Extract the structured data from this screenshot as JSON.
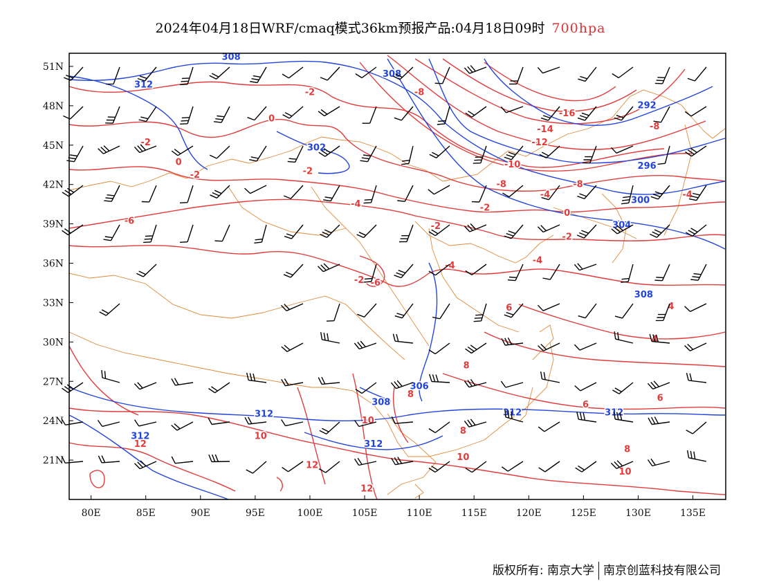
{
  "title": {
    "main": "2024年04月18日WRF/cmaq模式36km预报产品:04月18日09时",
    "level": "700hpa"
  },
  "colors": {
    "temperature": "#e23b3b",
    "geopotential": "#2244dd",
    "boundary": "#e08a3a",
    "wind": "#000000",
    "level_text": "#e03030"
  },
  "axes": {
    "lon_ticks": [
      "80E",
      "85E",
      "90E",
      "95E",
      "100E",
      "105E",
      "110E",
      "115E",
      "120E",
      "125E",
      "130E",
      "135E"
    ],
    "lat_ticks": [
      "51N",
      "48N",
      "45N",
      "42N",
      "39N",
      "36N",
      "33N",
      "30N",
      "27N",
      "24N",
      "21N"
    ]
  },
  "map_extent": {
    "lon": [
      78,
      138
    ],
    "lat": [
      18,
      52
    ]
  },
  "contour_labels": {
    "temperature": [
      {
        "text": "-2",
        "lon": 100.0,
        "lat": 48.8
      },
      {
        "text": "0",
        "lon": 96.5,
        "lat": 46.8
      },
      {
        "text": "-2",
        "lon": 85.0,
        "lat": 45.0
      },
      {
        "text": "0",
        "lon": 88.0,
        "lat": 43.5
      },
      {
        "text": "-2",
        "lon": 89.5,
        "lat": 42.5
      },
      {
        "text": "-2",
        "lon": 99.8,
        "lat": 42.8
      },
      {
        "text": "-8",
        "lon": 110.0,
        "lat": 48.8
      },
      {
        "text": "-16",
        "lon": 123.5,
        "lat": 47.2
      },
      {
        "text": "-14",
        "lon": 121.5,
        "lat": 46.0
      },
      {
        "text": "-12",
        "lon": 121.0,
        "lat": 45.0
      },
      {
        "text": "-10",
        "lon": 118.5,
        "lat": 43.3
      },
      {
        "text": "-8",
        "lon": 117.5,
        "lat": 41.8
      },
      {
        "text": "-8",
        "lon": 131.5,
        "lat": 46.2
      },
      {
        "text": "-8",
        "lon": 124.5,
        "lat": 41.8
      },
      {
        "text": "-4",
        "lon": 121.5,
        "lat": 41.0
      },
      {
        "text": "-2",
        "lon": 130.0,
        "lat": 40.6
      },
      {
        "text": "-4",
        "lon": 134.5,
        "lat": 41.0
      },
      {
        "text": "-2",
        "lon": 116.0,
        "lat": 40.0
      },
      {
        "text": "0",
        "lon": 123.5,
        "lat": 39.6
      },
      {
        "text": "-4",
        "lon": 104.2,
        "lat": 40.3
      },
      {
        "text": "-2",
        "lon": 111.5,
        "lat": 38.6
      },
      {
        "text": "-2",
        "lon": 123.5,
        "lat": 37.8
      },
      {
        "text": "-6",
        "lon": 83.5,
        "lat": 39.0
      },
      {
        "text": "-4",
        "lon": 112.8,
        "lat": 35.6
      },
      {
        "text": "-4",
        "lon": 120.8,
        "lat": 36.0
      },
      {
        "text": "-2",
        "lon": 104.5,
        "lat": 34.5
      },
      {
        "text": "-6",
        "lon": 106.0,
        "lat": 34.3
      },
      {
        "text": "6",
        "lon": 118.2,
        "lat": 32.4
      },
      {
        "text": "4",
        "lon": 133.0,
        "lat": 32.5
      },
      {
        "text": "4",
        "lon": 131.5,
        "lat": 30.0
      },
      {
        "text": "8",
        "lon": 114.3,
        "lat": 28.0
      },
      {
        "text": "8",
        "lon": 109.2,
        "lat": 25.8
      },
      {
        "text": "6",
        "lon": 125.2,
        "lat": 25.0
      },
      {
        "text": "6",
        "lon": 132.0,
        "lat": 25.5
      },
      {
        "text": "10",
        "lon": 105.3,
        "lat": 23.8
      },
      {
        "text": "10",
        "lon": 95.5,
        "lat": 22.6
      },
      {
        "text": "8",
        "lon": 114.0,
        "lat": 23.0
      },
      {
        "text": "8",
        "lon": 129.0,
        "lat": 21.6
      },
      {
        "text": "12",
        "lon": 84.5,
        "lat": 22.0
      },
      {
        "text": "12",
        "lon": 100.2,
        "lat": 20.4
      },
      {
        "text": "10",
        "lon": 114.0,
        "lat": 21.0
      },
      {
        "text": "10",
        "lon": 128.8,
        "lat": 19.9
      },
      {
        "text": "12",
        "lon": 105.2,
        "lat": 18.6
      }
    ],
    "geopotential": [
      {
        "text": "308",
        "lon": 92.8,
        "lat": 51.5
      },
      {
        "text": "308",
        "lon": 107.5,
        "lat": 50.2
      },
      {
        "text": "312",
        "lon": 84.8,
        "lat": 49.4
      },
      {
        "text": "302",
        "lon": 100.6,
        "lat": 44.6
      },
      {
        "text": "292",
        "lon": 130.8,
        "lat": 47.8
      },
      {
        "text": "296",
        "lon": 130.8,
        "lat": 43.2
      },
      {
        "text": "300",
        "lon": 130.2,
        "lat": 40.6
      },
      {
        "text": "304",
        "lon": 128.5,
        "lat": 38.7
      },
      {
        "text": "308",
        "lon": 130.5,
        "lat": 33.4
      },
      {
        "text": "306",
        "lon": 110.0,
        "lat": 26.4
      },
      {
        "text": "308",
        "lon": 106.5,
        "lat": 25.2
      },
      {
        "text": "312",
        "lon": 95.8,
        "lat": 24.3
      },
      {
        "text": "312",
        "lon": 118.5,
        "lat": 24.4
      },
      {
        "text": "312",
        "lon": 127.8,
        "lat": 24.4
      },
      {
        "text": "312",
        "lon": 105.8,
        "lat": 22.0
      },
      {
        "text": "312",
        "lon": 84.5,
        "lat": 22.6
      }
    ]
  },
  "footer": {
    "left": "版权所有: 南京大学",
    "right": "南京创蓝科技有限公司"
  }
}
